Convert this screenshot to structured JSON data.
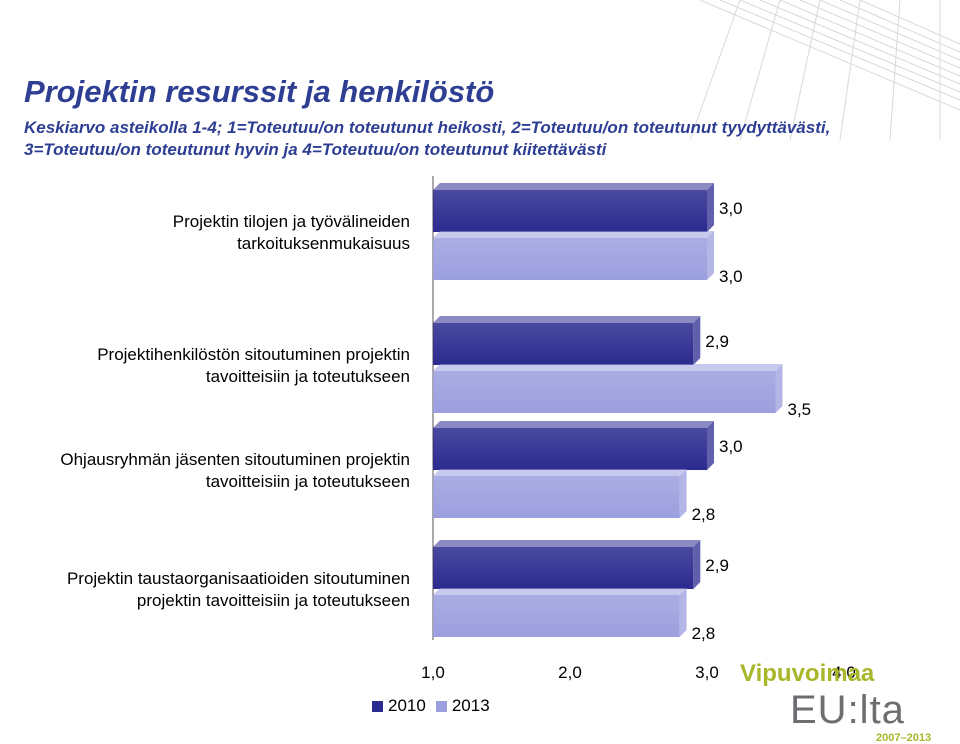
{
  "title": "Projektin resurssit ja henkilöstö",
  "subtitle": "Keskiarvo asteikolla 1-4; 1=Toteutuu/on toteutunut heikosti, 2=Toteutuu/on toteutunut tyydyttävästi, 3=Toteutuu/on toteutunut hyvin ja 4=Toteutuu/on toteutunut kiitettävästi",
  "legend": {
    "items": [
      "2010",
      "2013"
    ]
  },
  "colors": {
    "series_2010": "#2b2a8f",
    "series_2013": "#9b9fde",
    "title": "#2e3f93",
    "logo_green": "#a8b62a",
    "logo_gray": "#6d6e71"
  },
  "logo": {
    "top": "Vipuvoimaa",
    "middle": "EU:lta",
    "bottom": "2007–2013"
  },
  "chart_data": {
    "type": "bar",
    "orientation": "horizontal",
    "categories": [
      "Projektin tilojen ja työvälineiden tarkoituksenmukaisuus",
      "Projektihenkilöstön sitoutuminen projektin tavoitteisiin ja toteutukseen",
      "Ohjausryhmän jäsenten sitoutuminen projektin tavoitteisiin ja toteutukseen",
      "Projektin taustaorganisaatioiden sitoutuminen projektin tavoitteisiin ja toteutukseen"
    ],
    "category_lines": [
      [
        "Projektin tilojen ja työvälineiden",
        "tarkoituksenmukaisuus"
      ],
      [
        "Projektihenkilöstön sitoutuminen projektin",
        "tavoitteisiin ja toteutukseen"
      ],
      [
        "Ohjausryhmän jäsenten sitoutuminen projektin",
        "tavoitteisiin ja toteutukseen"
      ],
      [
        "Projektin taustaorganisaatioiden sitoutuminen",
        "projektin tavoitteisiin ja toteutukseen"
      ]
    ],
    "series": [
      {
        "name": "2010",
        "values": [
          3.0,
          2.9,
          3.0,
          2.9
        ],
        "labels": [
          "3,0",
          "2,9",
          "3,0",
          "2,9"
        ]
      },
      {
        "name": "2013",
        "values": [
          3.0,
          3.5,
          2.8,
          2.8
        ],
        "labels": [
          "3,0",
          "3,5",
          "2,8",
          "2,8"
        ]
      }
    ],
    "x_ticks": [
      {
        "value": 1,
        "label": "1,0"
      },
      {
        "value": 2,
        "label": "2,0"
      },
      {
        "value": 3,
        "label": "3,0"
      },
      {
        "value": 4,
        "label": "4,0"
      }
    ],
    "xlim": [
      1,
      4
    ],
    "legend_position": "bottom"
  }
}
